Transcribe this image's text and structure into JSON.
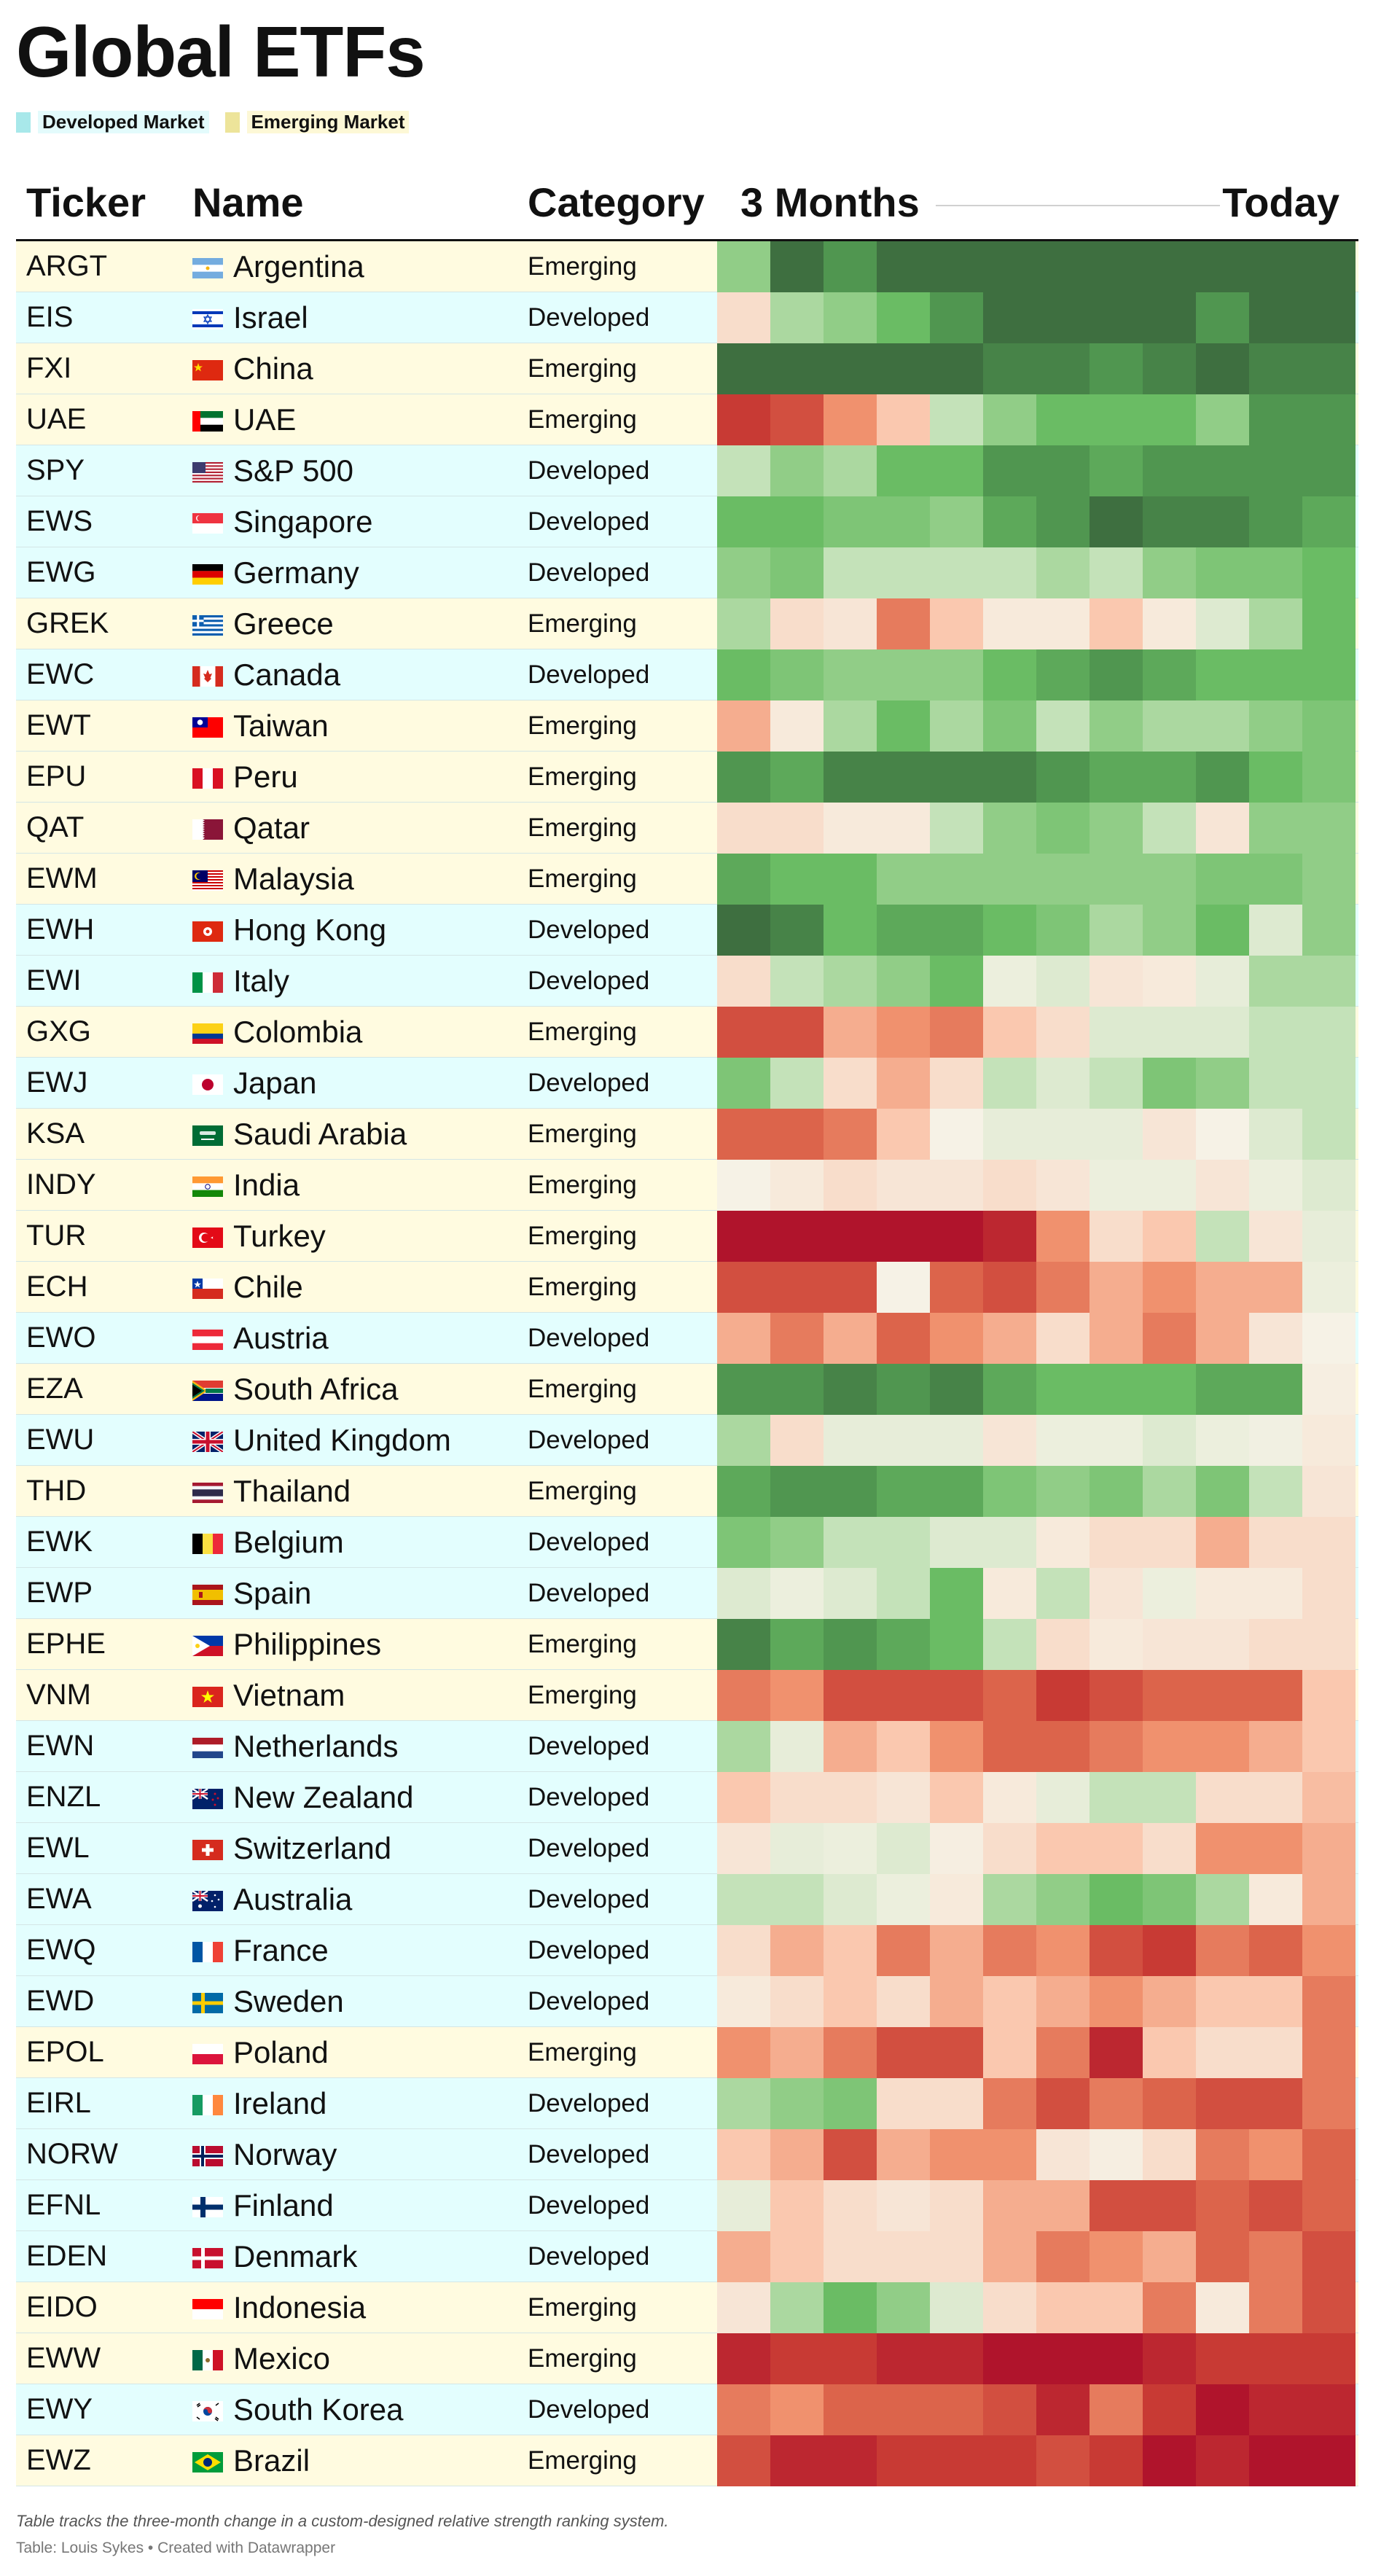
{
  "title": "Global ETFs",
  "legend": {
    "developed": "Developed Market",
    "emerging": "Emerging Market"
  },
  "columns": {
    "ticker": "Ticker",
    "name": "Name",
    "category": "Category",
    "start": "3 Months",
    "end": "Today"
  },
  "colors": {
    "developed_row": "#e3fefe",
    "emerging_row": "#fffbe0",
    "strongest": "#3e6f40",
    "weakest": "#b0142c"
  },
  "chart_data": {
    "type": "heatmap",
    "title": "Global ETFs",
    "x": [
      "3 Months",
      "Today"
    ],
    "scale": "relative strength ranking change, -5 (deep red) to +5 (deep green); 12 periods from 3 Months to Today",
    "rows": [
      {
        "ticker": "ARGT",
        "name": "Argentina",
        "category": "Emerging",
        "flag": "argentina",
        "values": [
          2,
          5,
          4,
          5,
          5,
          5,
          5,
          5,
          5,
          5,
          5,
          5
        ]
      },
      {
        "ticker": "EIS",
        "name": "Israel",
        "category": "Developed",
        "flag": "israel",
        "values": [
          -0.5,
          1.5,
          2,
          3,
          4,
          5,
          5,
          5,
          5,
          4,
          5,
          5
        ]
      },
      {
        "ticker": "FXI",
        "name": "China",
        "category": "Emerging",
        "flag": "china",
        "values": [
          5,
          5,
          5,
          5,
          5,
          4.5,
          4.5,
          4,
          4.5,
          5,
          4.5,
          4.5
        ]
      },
      {
        "ticker": "UAE",
        "name": "UAE",
        "category": "Emerging",
        "flag": "uae",
        "values": [
          -4,
          -3.5,
          -2,
          -1,
          1,
          2,
          3,
          3,
          3,
          2,
          4,
          4
        ]
      },
      {
        "ticker": "SPY",
        "name": "S&P 500",
        "category": "Developed",
        "flag": "usa",
        "values": [
          1,
          2,
          1.5,
          3,
          3,
          4,
          4,
          3.5,
          4,
          4,
          4,
          4
        ]
      },
      {
        "ticker": "EWS",
        "name": "Singapore",
        "category": "Developed",
        "flag": "singapore",
        "values": [
          3,
          3,
          2.5,
          2.5,
          2,
          3.5,
          4,
          5,
          4.5,
          4.5,
          4,
          3.5
        ]
      },
      {
        "ticker": "EWG",
        "name": "Germany",
        "category": "Developed",
        "flag": "germany",
        "values": [
          2,
          2.5,
          1,
          1,
          1,
          1,
          1.5,
          1,
          2,
          2.5,
          2.5,
          3
        ]
      },
      {
        "ticker": "GREK",
        "name": "Greece",
        "category": "Emerging",
        "flag": "greece",
        "values": [
          1.5,
          -0.5,
          -0.3,
          -2.5,
          -1,
          -0.2,
          -0.2,
          -1,
          -0.2,
          0.5,
          1.5,
          3
        ]
      },
      {
        "ticker": "EWC",
        "name": "Canada",
        "category": "Developed",
        "flag": "canada",
        "values": [
          3,
          2.5,
          2,
          2,
          2,
          3,
          3.5,
          4,
          3.5,
          3,
          3,
          3
        ]
      },
      {
        "ticker": "EWT",
        "name": "Taiwan",
        "category": "Emerging",
        "flag": "taiwan",
        "values": [
          -1.5,
          -0.2,
          1.5,
          3,
          1.5,
          2.5,
          1,
          2,
          1.5,
          1.5,
          2,
          2.5
        ]
      },
      {
        "ticker": "EPU",
        "name": "Peru",
        "category": "Emerging",
        "flag": "peru",
        "values": [
          4,
          3.5,
          4.5,
          4.5,
          4.5,
          4.5,
          4,
          3.5,
          3.5,
          4,
          3,
          2.5
        ]
      },
      {
        "ticker": "QAT",
        "name": "Qatar",
        "category": "Emerging",
        "flag": "qatar",
        "values": [
          -0.5,
          -0.5,
          -0.2,
          -0.2,
          1,
          2,
          2.5,
          2,
          1,
          -0.3,
          2,
          2
        ]
      },
      {
        "ticker": "EWM",
        "name": "Malaysia",
        "category": "Emerging",
        "flag": "malaysia",
        "values": [
          3.5,
          3,
          3,
          2,
          2,
          2,
          2,
          2,
          2,
          2.5,
          2.5,
          2
        ]
      },
      {
        "ticker": "EWH",
        "name": "Hong Kong",
        "category": "Developed",
        "flag": "hongkong",
        "values": [
          5,
          4.5,
          3,
          3.5,
          3.5,
          3,
          2.5,
          1.5,
          2,
          3,
          0.5,
          2
        ]
      },
      {
        "ticker": "EWI",
        "name": "Italy",
        "category": "Developed",
        "flag": "italy",
        "values": [
          -0.5,
          1,
          1.5,
          2,
          3,
          0.2,
          0.5,
          -0.3,
          -0.2,
          0.3,
          1.5,
          1.5
        ]
      },
      {
        "ticker": "GXG",
        "name": "Colombia",
        "category": "Emerging",
        "flag": "colombia",
        "values": [
          -3.5,
          -3.5,
          -1.5,
          -2,
          -2.5,
          -1,
          -0.5,
          0.5,
          0.5,
          0.5,
          1,
          1
        ]
      },
      {
        "ticker": "EWJ",
        "name": "Japan",
        "category": "Developed",
        "flag": "japan",
        "values": [
          2.5,
          1,
          -0.5,
          -1.5,
          -0.5,
          1,
          0.5,
          1,
          2.5,
          2,
          1,
          1
        ]
      },
      {
        "ticker": "KSA",
        "name": "Saudi Arabia",
        "category": "Emerging",
        "flag": "saudi",
        "values": [
          -3,
          -3,
          -2.5,
          -1,
          0,
          0.3,
          0.3,
          0.3,
          -0.3,
          0,
          0.5,
          1
        ]
      },
      {
        "ticker": "INDY",
        "name": "India",
        "category": "Emerging",
        "flag": "india",
        "values": [
          0,
          -0.2,
          -0.5,
          -0.3,
          -0.3,
          -0.5,
          -0.3,
          0.2,
          0.2,
          -0.3,
          0.2,
          0.5
        ]
      },
      {
        "ticker": "TUR",
        "name": "Turkey",
        "category": "Emerging",
        "flag": "turkey",
        "values": [
          -5,
          -5,
          -5,
          -5,
          -5,
          -4.5,
          -2,
          -0.5,
          -1,
          1,
          -0.3,
          0.3
        ]
      },
      {
        "ticker": "ECH",
        "name": "Chile",
        "category": "Emerging",
        "flag": "chile",
        "values": [
          -3.5,
          -3.5,
          -3.5,
          0,
          -3,
          -3.5,
          -2.5,
          -1.5,
          -2,
          -1.5,
          -1.5,
          0.2
        ]
      },
      {
        "ticker": "EWO",
        "name": "Austria",
        "category": "Developed",
        "flag": "austria",
        "values": [
          -1.5,
          -2.5,
          -1.5,
          -3,
          -2,
          -1.5,
          -0.5,
          -1.5,
          -2.5,
          -1.5,
          -0.3,
          0
        ]
      },
      {
        "ticker": "EZA",
        "name": "South Africa",
        "category": "Emerging",
        "flag": "southafrica",
        "values": [
          4,
          4,
          4.5,
          4,
          4.5,
          3.5,
          3,
          3,
          3,
          3.5,
          3.5,
          -0.1
        ]
      },
      {
        "ticker": "EWU",
        "name": "United Kingdom",
        "category": "Developed",
        "flag": "uk",
        "values": [
          1.5,
          -0.5,
          0.3,
          0.3,
          0.3,
          -0.3,
          0.2,
          0.2,
          0.5,
          0.2,
          0.1,
          -0.2
        ]
      },
      {
        "ticker": "THD",
        "name": "Thailand",
        "category": "Emerging",
        "flag": "thailand",
        "values": [
          3.5,
          4,
          4,
          3.5,
          3.5,
          2.5,
          2,
          2.5,
          1.5,
          2.5,
          1,
          -0.3
        ]
      },
      {
        "ticker": "EWK",
        "name": "Belgium",
        "category": "Developed",
        "flag": "belgium",
        "values": [
          2.5,
          2,
          1,
          1,
          0.5,
          0.5,
          -0.2,
          -0.5,
          -0.5,
          -1.5,
          -0.5,
          -0.5
        ]
      },
      {
        "ticker": "EWP",
        "name": "Spain",
        "category": "Developed",
        "flag": "spain",
        "values": [
          0.5,
          0.2,
          0.5,
          1,
          3,
          -0.2,
          1,
          -0.3,
          0.2,
          -0.2,
          -0.2,
          -0.5
        ]
      },
      {
        "ticker": "EPHE",
        "name": "Philippines",
        "category": "Emerging",
        "flag": "philippines",
        "values": [
          4.5,
          3.5,
          4,
          3.5,
          3,
          1,
          -0.5,
          -0.2,
          -0.3,
          -0.3,
          -0.5,
          -0.5
        ]
      },
      {
        "ticker": "VNM",
        "name": "Vietnam",
        "category": "Emerging",
        "flag": "vietnam",
        "values": [
          -2.5,
          -2,
          -3.5,
          -3.5,
          -3.5,
          -3,
          -4,
          -3.5,
          -3,
          -3,
          -3,
          -1
        ]
      },
      {
        "ticker": "EWN",
        "name": "Netherlands",
        "category": "Developed",
        "flag": "netherlands",
        "values": [
          1.5,
          0.3,
          -1.5,
          -1,
          -2,
          -3,
          -3,
          -2.5,
          -2,
          -2,
          -1.5,
          -1
        ]
      },
      {
        "ticker": "ENZL",
        "name": "New Zealand",
        "category": "Developed",
        "flag": "newzealand",
        "values": [
          -1,
          -0.5,
          -0.5,
          -0.3,
          -1,
          -0.2,
          0.3,
          1,
          1,
          -0.5,
          -0.5,
          -1.2
        ]
      },
      {
        "ticker": "EWL",
        "name": "Switzerland",
        "category": "Developed",
        "flag": "switzerland",
        "values": [
          -0.3,
          0.3,
          0.2,
          0.5,
          -0.1,
          -0.5,
          -1,
          -1,
          -0.5,
          -2,
          -2,
          -1.5
        ]
      },
      {
        "ticker": "EWA",
        "name": "Australia",
        "category": "Developed",
        "flag": "australia",
        "values": [
          1,
          1,
          0.5,
          0.2,
          -0.2,
          1.5,
          2,
          3,
          2.5,
          1.5,
          -0.2,
          -1.5
        ]
      },
      {
        "ticker": "EWQ",
        "name": "France",
        "category": "Developed",
        "flag": "france",
        "values": [
          -0.5,
          -1.5,
          -1,
          -2.5,
          -1.5,
          -2.5,
          -2,
          -3.5,
          -4,
          -2.5,
          -3,
          -2
        ]
      },
      {
        "ticker": "EWD",
        "name": "Sweden",
        "category": "Developed",
        "flag": "sweden",
        "values": [
          -0.2,
          -0.5,
          -1,
          -0.5,
          -1.5,
          -1,
          -1.5,
          -2,
          -1.5,
          -1,
          -1,
          -2.5
        ]
      },
      {
        "ticker": "EPOL",
        "name": "Poland",
        "category": "Emerging",
        "flag": "poland",
        "values": [
          -2,
          -1.5,
          -2.5,
          -3.5,
          -3.5,
          -1,
          -2.5,
          -4.5,
          -1,
          -0.5,
          -0.5,
          -2.5
        ]
      },
      {
        "ticker": "EIRL",
        "name": "Ireland",
        "category": "Developed",
        "flag": "ireland",
        "values": [
          1.5,
          2,
          2.5,
          -0.5,
          -0.5,
          -2.5,
          -3.5,
          -2.5,
          -3,
          -3.5,
          -3.5,
          -2.5
        ]
      },
      {
        "ticker": "NORW",
        "name": "Norway",
        "category": "Developed",
        "flag": "norway",
        "values": [
          -1,
          -1.5,
          -3.5,
          -1.5,
          -2,
          -2,
          -0.3,
          -0.1,
          -0.5,
          -2.5,
          -2,
          -3
        ]
      },
      {
        "ticker": "EFNL",
        "name": "Finland",
        "category": "Developed",
        "flag": "finland",
        "values": [
          0.3,
          -1,
          -0.5,
          -0.3,
          -0.5,
          -1.5,
          -1.5,
          -3.5,
          -3.5,
          -3,
          -3.5,
          -3
        ]
      },
      {
        "ticker": "EDEN",
        "name": "Denmark",
        "category": "Developed",
        "flag": "denmark",
        "values": [
          -1.5,
          -1,
          -0.5,
          -0.5,
          -0.5,
          -1.5,
          -2.5,
          -2,
          -1.5,
          -3,
          -2.5,
          -3.5
        ]
      },
      {
        "ticker": "EIDO",
        "name": "Indonesia",
        "category": "Emerging",
        "flag": "indonesia",
        "values": [
          -0.3,
          1.5,
          3,
          2,
          0.5,
          -0.5,
          -1,
          -1,
          -2.5,
          -0.2,
          -2.5,
          -3.5
        ]
      },
      {
        "ticker": "EWW",
        "name": "Mexico",
        "category": "Emerging",
        "flag": "mexico",
        "values": [
          -4.5,
          -4,
          -4,
          -4.5,
          -4.5,
          -5,
          -5,
          -5,
          -4.5,
          -4,
          -4,
          -4
        ]
      },
      {
        "ticker": "EWY",
        "name": "South Korea",
        "category": "Developed",
        "flag": "southkorea",
        "values": [
          -2.5,
          -2,
          -3,
          -3,
          -3,
          -3.5,
          -4.5,
          -2.5,
          -4,
          -5,
          -4.5,
          -4.5
        ]
      },
      {
        "ticker": "EWZ",
        "name": "Brazil",
        "category": "Emerging",
        "flag": "brazil",
        "values": [
          -3.5,
          -4.5,
          -4.5,
          -4,
          -4,
          -4,
          -3.5,
          -4,
          -5,
          -4.5,
          -5,
          -5
        ]
      }
    ]
  },
  "footnote": "Table tracks the three-month change in a custom-designed relative strength ranking system.",
  "source": "Table: Louis Sykes • Created with Datawrapper"
}
